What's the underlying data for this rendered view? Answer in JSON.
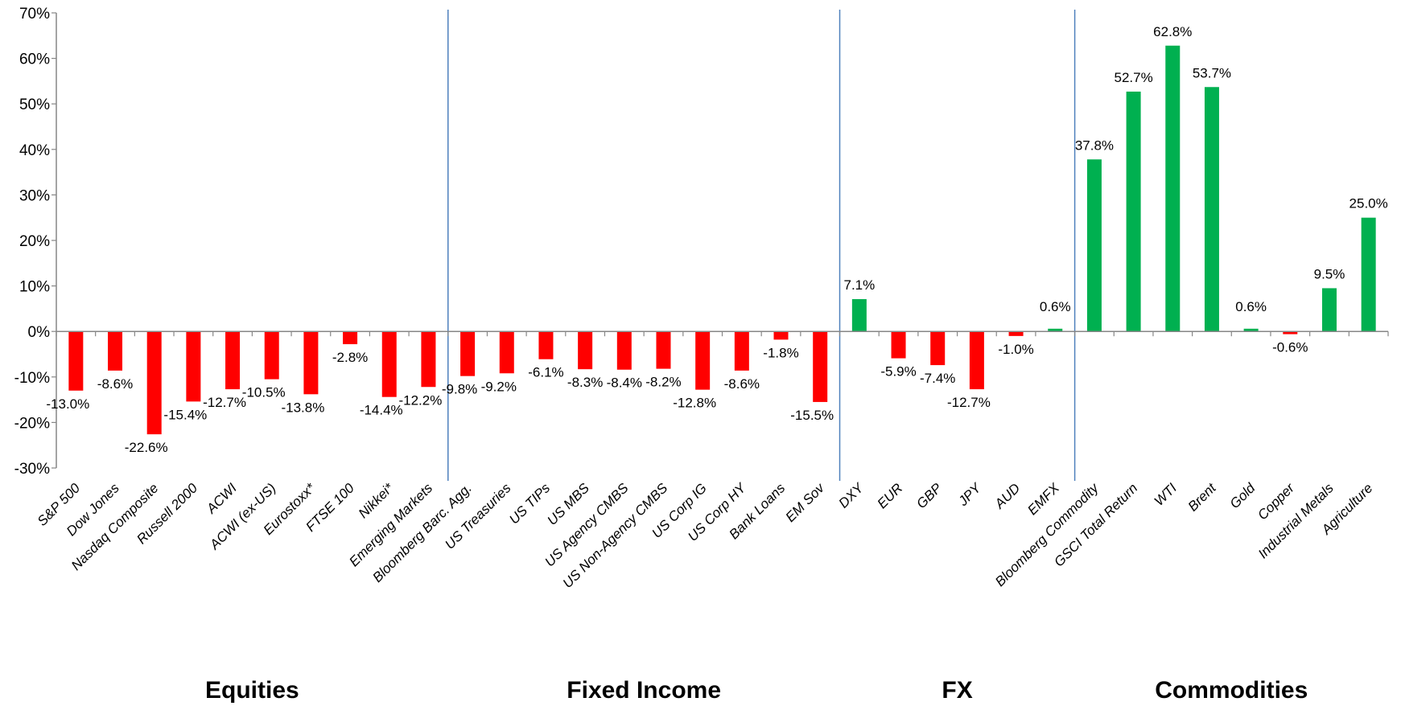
{
  "chart_data": {
    "type": "bar",
    "title": "",
    "xlabel": "",
    "ylabel": "",
    "ylim": [
      -30,
      70
    ],
    "yticks": [
      -30,
      -20,
      -10,
      0,
      10,
      20,
      30,
      40,
      50,
      60,
      70
    ],
    "ytick_suffix": "%",
    "grid": false,
    "legend": "none",
    "colors": {
      "negative": "#ff0000",
      "positive": "#00b050",
      "separator": "#4f81bd",
      "axis": "#868686"
    },
    "categories": [
      "S&P 500",
      "Dow Jones",
      "Nasdaq Composite",
      "Russell 2000",
      "ACWI",
      "ACWI (ex-US)",
      "Eurostoxx*",
      "FTSE 100",
      "Nikkei*",
      "Emerging Markets",
      "Bloomberg Barc. Agg.",
      "US Treasuries",
      "US TIPs",
      "US MBS",
      "US Agency CMBS",
      "US Non-Agency CMBS",
      "US Corp IG",
      "US Corp HY",
      "Bank Loans",
      "EM Sov",
      "DXY",
      "EUR",
      "GBP",
      "JPY",
      "AUD",
      "EMFX",
      "Bloomberg Commodity",
      "GSCI Total Return",
      "WTI",
      "Brent",
      "Gold",
      "Copper",
      "Industrial Metals",
      "Agriculture"
    ],
    "values": [
      -13.0,
      -8.6,
      -22.6,
      -15.4,
      -12.7,
      -10.5,
      -13.8,
      -2.8,
      -14.4,
      -12.2,
      -9.8,
      -9.2,
      -6.1,
      -8.3,
      -8.4,
      -8.2,
      -12.8,
      -8.6,
      -1.8,
      -15.5,
      7.1,
      -5.9,
      -7.4,
      -12.7,
      -1.0,
      0.6,
      37.8,
      52.7,
      62.8,
      53.7,
      0.6,
      -0.6,
      9.5,
      25.0
    ],
    "data_labels": [
      "-13.0%",
      "-8.6%",
      "-22.6%",
      "-15.4%",
      "-12.7%",
      "-10.5%",
      "-13.8%",
      "-2.8%",
      "-14.4%",
      "-12.2%",
      "-9.8%",
      "-9.2%",
      "-6.1%",
      "-8.3%",
      "-8.4%",
      "-8.2%",
      "-12.8%",
      "-8.6%",
      "-1.8%",
      "-15.5%",
      "7.1%",
      "-5.9%",
      "-7.4%",
      "-12.7%",
      "-1.0%",
      "0.6%",
      "37.8%",
      "52.7%",
      "62.8%",
      "53.7%",
      "0.6%",
      "-0.6%",
      "9.5%",
      "25.0%"
    ],
    "groups": [
      {
        "name": "Equities",
        "start": 0,
        "end": 9
      },
      {
        "name": "Fixed Income",
        "start": 10,
        "end": 19
      },
      {
        "name": "FX",
        "start": 20,
        "end": 25
      },
      {
        "name": "Commodities",
        "start": 26,
        "end": 33
      }
    ]
  }
}
